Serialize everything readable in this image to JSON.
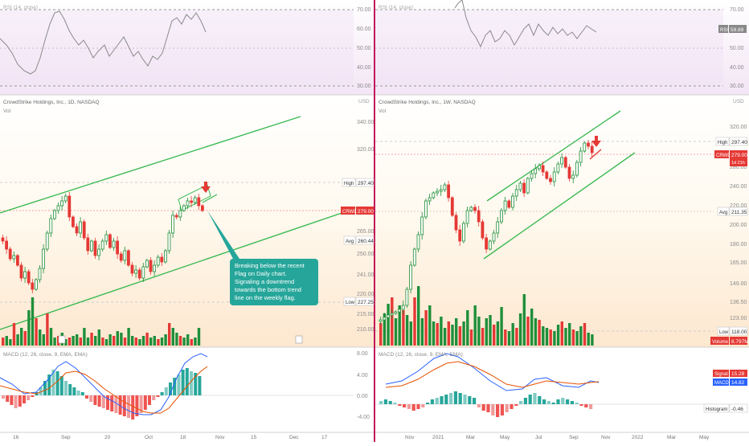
{
  "left": {
    "rsi": {
      "label": "RSI (14, close)",
      "ticks": [
        "70.00",
        "60.00",
        "50.00",
        "40.00",
        "30.00"
      ]
    },
    "main": {
      "title": "CrowdStrike Holdings, Inc., 1D, NASDAQ",
      "vol": "Vol",
      "currency": "USD",
      "ticks": [
        "340.00",
        "320.00",
        "265.00",
        "250.00",
        "241.00",
        "220.00",
        "215.00",
        "210.00"
      ],
      "high": {
        "label": "High",
        "value": "297.40"
      },
      "crwd": {
        "label": "CRWD",
        "value": "279.00"
      },
      "avg": {
        "label": "Avg",
        "value": "260.44"
      },
      "low": {
        "label": "Low",
        "value": "227.25"
      },
      "annotation": [
        "Breaking below the recent",
        "Flag on Daily chart.",
        "Signaling a downtrend",
        "towards the bottom trend",
        "line on the weekly flag."
      ]
    },
    "macd": {
      "label": "MACD (12, 26, close, 9, EMA, EMA)",
      "ticks": [
        "8.00",
        "4.00",
        "0.00",
        "-4.00"
      ]
    },
    "xaxis": [
      "16",
      "Sep",
      "20",
      "Oct",
      "18",
      "Nov",
      "15",
      "Dec",
      "17"
    ]
  },
  "right": {
    "rsi": {
      "label": "RSI (14, close)",
      "ticks": [
        "70.00",
        "60.00",
        "50.00",
        "40.00",
        "30.00"
      ],
      "badge_label": "RSI",
      "badge_value": "59.89"
    },
    "main": {
      "title": "CrowdStrike Holdings, Inc., 1W, NASDAQ",
      "vol": "Vol",
      "currency": "USD",
      "ticks": [
        "320.00",
        "300.00",
        "280.00",
        "240.00",
        "220.00",
        "200.00",
        "180.00",
        "165.00",
        "149.00",
        "136.50",
        "123.00"
      ],
      "high": {
        "label": "High",
        "value": "297.40"
      },
      "crwd": {
        "label": "CRWD",
        "value": "279.00",
        "sub": "1d 21h"
      },
      "avg": {
        "label": "Avg",
        "value": "211.35"
      },
      "low": {
        "label": "Low",
        "value": "118.00"
      },
      "volume": {
        "label": "Volume",
        "value": "8.797M"
      }
    },
    "macd": {
      "label": "MACD (12, 26, close, 9, EMA, EMA)",
      "signal": {
        "label": "Signal",
        "value": "15.28"
      },
      "macd": {
        "label": "MACD",
        "value": "14.82"
      },
      "histogram": {
        "label": "Histogram",
        "value": "-0.46"
      }
    },
    "xaxis": [
      "Nov",
      "2021",
      "Mar",
      "May",
      "Jul",
      "Sep",
      "Nov",
      "2022",
      "Mar",
      "May"
    ]
  },
  "colors": {
    "up": "#1e8f3a",
    "down": "#e53935",
    "trend": "#3cba54",
    "teal": "#26a69a",
    "macd_line": "#2962ff",
    "signal_line": "#e65100"
  }
}
